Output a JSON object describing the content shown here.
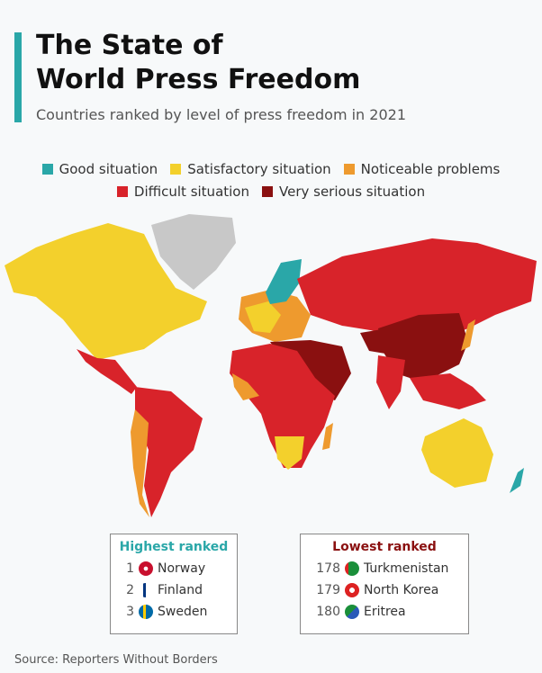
{
  "header": {
    "title_lines": [
      "The State of",
      "World Press Freedom"
    ],
    "subtitle": "Countries ranked by level of press freedom in 2021"
  },
  "legend": [
    {
      "label": "Good situation",
      "color": "#2aa7a8"
    },
    {
      "label": "Satisfactory situation",
      "color": "#f3d02c"
    },
    {
      "label": "Noticeable problems",
      "color": "#ee9a2e"
    },
    {
      "label": "Difficult situation",
      "color": "#d8232a"
    },
    {
      "label": "Very serious situation",
      "color": "#8a1010"
    }
  ],
  "highest_ranked": {
    "title": "Highest ranked",
    "entries": [
      {
        "rank": 1,
        "country": "Norway"
      },
      {
        "rank": 2,
        "country": "Finland"
      },
      {
        "rank": 3,
        "country": "Sweden"
      }
    ]
  },
  "lowest_ranked": {
    "title": "Lowest ranked",
    "entries": [
      {
        "rank": 178,
        "country": "Turkmenistan"
      },
      {
        "rank": 179,
        "country": "North Korea"
      },
      {
        "rank": 180,
        "country": "Eritrea"
      }
    ]
  },
  "source": "Source: Reporters Without Borders"
}
